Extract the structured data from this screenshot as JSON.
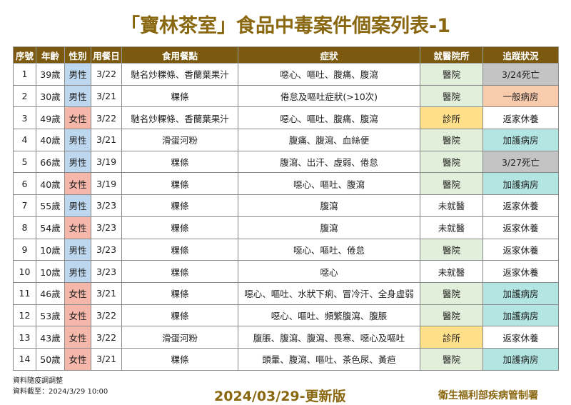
{
  "title": "「寶林茶室」食品中毒案件個案列表-1",
  "headers": [
    "序號",
    "年齡",
    "性別",
    "用餐日",
    "食用餐點",
    "症狀",
    "就醫院所",
    "追蹤狀況"
  ],
  "colors": {
    "header": "#7b5a10",
    "title": "#8a6812",
    "男性": "#bdd7ee",
    "女性": "#f4b7a9",
    "醫院": "#e2efda",
    "診所": "#ffe08a",
    "死亡": "#c4c4c4",
    "一般病房": "#f8cbad",
    "加護病房": "#b3e5e3"
  },
  "rows": [
    [
      "1",
      "39歲",
      "男性",
      "3/22",
      "馳名炒粿條、香蘭葉果汁",
      "噁心、嘔吐、腹痛、腹瀉",
      "醫院",
      "3/24死亡"
    ],
    [
      "2",
      "30歲",
      "男性",
      "3/21",
      "粿條",
      "倦怠及嘔吐症狀(>10次)",
      "醫院",
      "一般病房"
    ],
    [
      "3",
      "49歲",
      "女性",
      "3/22",
      "馳名炒粿條、香蘭葉果汁",
      "噁心、嘔吐、腹痛、腹瀉",
      "診所",
      "返家休養"
    ],
    [
      "4",
      "40歲",
      "男性",
      "3/21",
      "滑蛋河粉",
      "腹痛、腹瀉、血絲便",
      "醫院",
      "加護病房"
    ],
    [
      "5",
      "66歲",
      "男性",
      "3/19",
      "粿條",
      "腹瀉、出汗、虛弱、倦怠",
      "醫院",
      "3/27死亡"
    ],
    [
      "6",
      "40歲",
      "女性",
      "3/19",
      "粿條",
      "噁心、嘔吐、腹瀉",
      "醫院",
      "加護病房"
    ],
    [
      "7",
      "55歲",
      "男性",
      "3/23",
      "粿條",
      "腹瀉",
      "未就醫",
      "返家休養"
    ],
    [
      "8",
      "54歲",
      "女性",
      "3/23",
      "粿條",
      "腹瀉",
      "未就醫",
      "返家休養"
    ],
    [
      "9",
      "10歲",
      "男性",
      "3/23",
      "粿條",
      "噁心、嘔吐、倦怠",
      "醫院",
      "返家休養"
    ],
    [
      "10",
      "10歲",
      "男性",
      "3/23",
      "粿條",
      "噁心",
      "未就醫",
      "返家休養"
    ],
    [
      "11",
      "46歲",
      "女性",
      "3/21",
      "粿條",
      "噁心、嘔吐、水狀下痢、冒冷汗、全身虛弱",
      "醫院",
      "加護病房"
    ],
    [
      "12",
      "53歲",
      "女性",
      "3/22",
      "粿條",
      "噁心、嘔吐、頻繁腹瀉、腹脹",
      "醫院",
      "加護病房"
    ],
    [
      "13",
      "43歲",
      "女性",
      "3/22",
      "滑蛋河粉",
      "腹脹、腹瀉、腹瀉、畏寒、噁心及嘔吐",
      "診所",
      "返家休養"
    ],
    [
      "14",
      "50歲",
      "女性",
      "3/21",
      "粿條",
      "頭暈、腹瀉、嘔吐、茶色尿、黃疸",
      "醫院",
      "加護病房"
    ]
  ],
  "footer": {
    "note1": "資料隨疫調調整",
    "note2": "資料截至：2024/3/29 10:00",
    "version": "2024/03/29-更新版",
    "org": "衛生福利部疾病管制署"
  }
}
